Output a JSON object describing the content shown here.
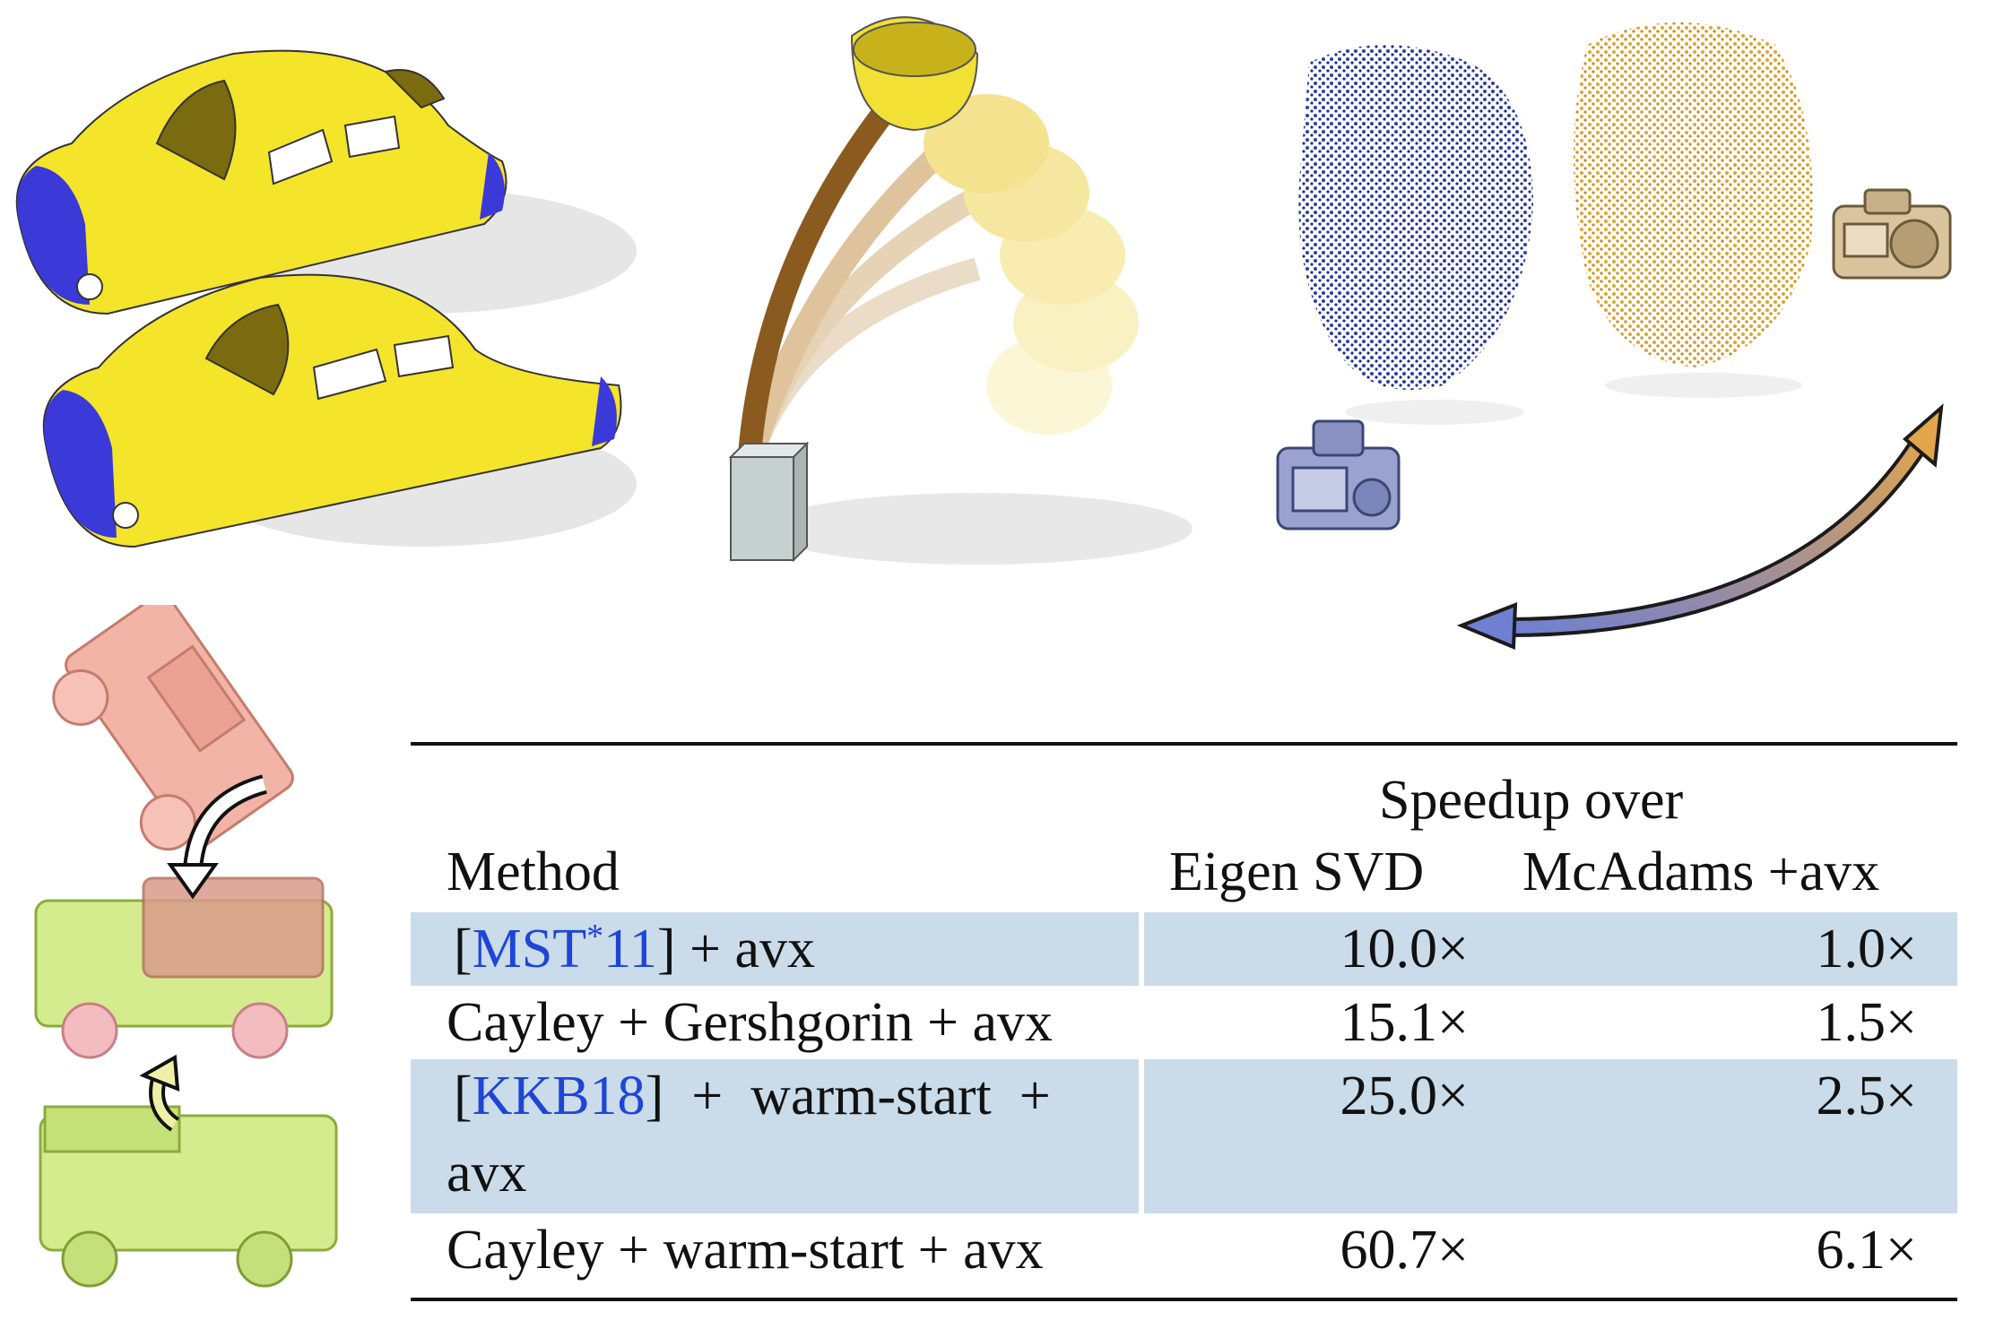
{
  "table": {
    "group_header": "Speedup over",
    "columns": [
      "Method",
      "Eigen SVD",
      "McAdams +avx"
    ],
    "rows": [
      {
        "prefix": "[",
        "citation": "MST",
        "citation_sup": "*",
        "citation_tail": "11",
        "suffix": "] + avx",
        "method_line2": "",
        "eigen": "10.0×",
        "mcadams": "1.0×",
        "shaded": true
      },
      {
        "prefix": "",
        "citation": "",
        "citation_sup": "",
        "citation_tail": "",
        "suffix": "Cayley + Gershgorin + avx",
        "method_line2": "",
        "eigen": "15.1×",
        "mcadams": "1.5×",
        "shaded": false
      },
      {
        "prefix": "[",
        "citation": "KKB18",
        "citation_sup": "",
        "citation_tail": "",
        "suffix": "]  +  warm-start  +",
        "method_line2": "avx",
        "eigen": "25.0×",
        "mcadams": "2.5×",
        "shaded": true
      },
      {
        "prefix": "",
        "citation": "",
        "citation_sup": "",
        "citation_tail": "",
        "suffix": "Cayley + warm-start + avx",
        "method_line2": "",
        "eigen": "60.7×",
        "mcadams": "6.1×",
        "shaded": false
      }
    ]
  },
  "colors": {
    "car_yellow": "#f4e42a",
    "car_blue": "#3b39d8",
    "face_blue": "#2c3fa8",
    "face_gold": "#e0a52c",
    "beam_brown": "#8a5a1f",
    "citation_blue": "#1f45d6",
    "row_shade": "#cadbe9"
  },
  "icons": [
    "camera-icon",
    "rotate-arrow-icon",
    "double-arrow-icon"
  ]
}
